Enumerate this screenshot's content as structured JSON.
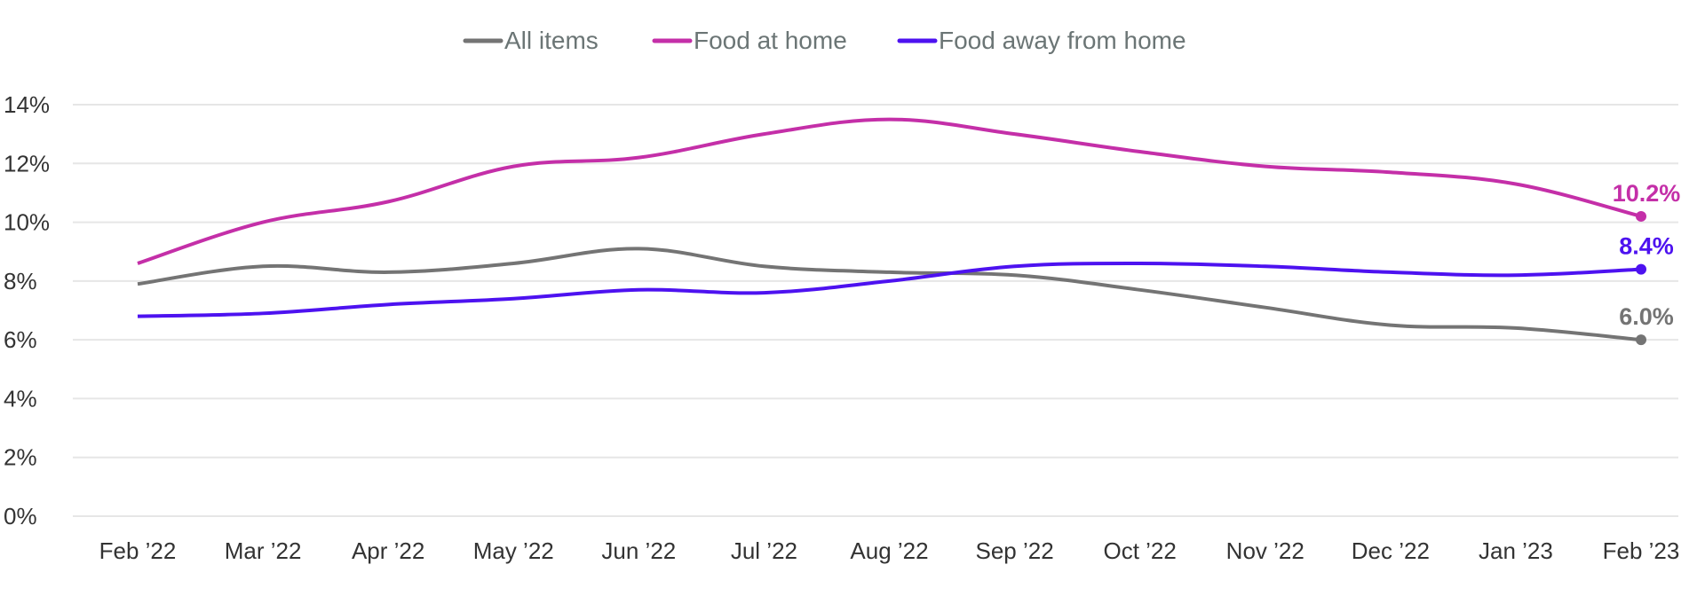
{
  "chart_data": {
    "type": "line",
    "title": "",
    "xlabel": "",
    "ylabel": "",
    "categories": [
      "Feb ’22",
      "Mar ’22",
      "Apr ’22",
      "May ’22",
      "Jun ’22",
      "Jul ’22",
      "Aug ’22",
      "Sep ’22",
      "Oct ’22",
      "Nov ’22",
      "Dec ’22",
      "Jan ’23",
      "Feb ’23"
    ],
    "ylim": [
      0,
      14
    ],
    "yticks": [
      0,
      2,
      4,
      6,
      8,
      10,
      12,
      14
    ],
    "ytick_labels": [
      "0%",
      "2%",
      "4%",
      "6%",
      "8%",
      "10%",
      "12%",
      "14%"
    ],
    "grid": true,
    "legend_position": "top-center",
    "series": [
      {
        "name": "All items",
        "color": "#747474",
        "values": [
          7.9,
          8.5,
          8.3,
          8.6,
          9.1,
          8.5,
          8.3,
          8.2,
          7.7,
          7.1,
          6.5,
          6.4,
          6.0
        ],
        "end_label": "6.0%"
      },
      {
        "name": "Food at home",
        "color": "#c42fa8",
        "values": [
          8.6,
          10.0,
          10.7,
          11.9,
          12.2,
          13.0,
          13.5,
          13.0,
          12.4,
          11.9,
          11.7,
          11.3,
          10.2
        ],
        "end_label": "10.2%"
      },
      {
        "name": "Food away from home",
        "color": "#4d12f0",
        "values": [
          6.8,
          6.9,
          7.2,
          7.4,
          7.7,
          7.6,
          8.0,
          8.5,
          8.6,
          8.5,
          8.3,
          8.2,
          8.4
        ],
        "end_label": "8.4%"
      }
    ]
  }
}
